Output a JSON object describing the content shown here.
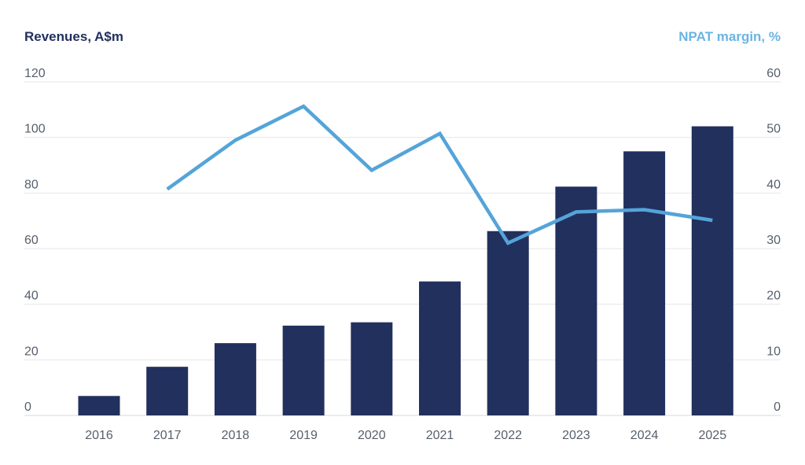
{
  "chart_data": {
    "type": "bar+line",
    "categories": [
      "2016",
      "2017",
      "2018",
      "2019",
      "2020",
      "2021",
      "2022",
      "2023",
      "2024",
      "2025"
    ],
    "series": [
      {
        "name": "Revenues, A$m",
        "type": "bar",
        "axis": "left",
        "color": "#22305e",
        "values": [
          7,
          17.5,
          26,
          32.3,
          33.5,
          48.2,
          66.3,
          82.3,
          95,
          104
        ]
      },
      {
        "name": "NPAT margin, %",
        "type": "line",
        "axis": "right",
        "color": "#54a4d9",
        "values": [
          null,
          40.7,
          49.5,
          55.6,
          44.1,
          50.7,
          31,
          36.6,
          37,
          35.1
        ]
      }
    ],
    "y_left": {
      "label": "Revenues, A$m",
      "ticks": [
        "0",
        "20",
        "40",
        "60",
        "80",
        "100",
        "120"
      ],
      "ylim": [
        0,
        120
      ],
      "color": "#22305e"
    },
    "y_right": {
      "label": "NPAT margin, %",
      "ticks": [
        "0",
        "10",
        "20",
        "30",
        "40",
        "50",
        "60"
      ],
      "ylim": [
        0,
        60
      ],
      "color": "#6ab4e3"
    },
    "grid": true,
    "legend": "none"
  }
}
